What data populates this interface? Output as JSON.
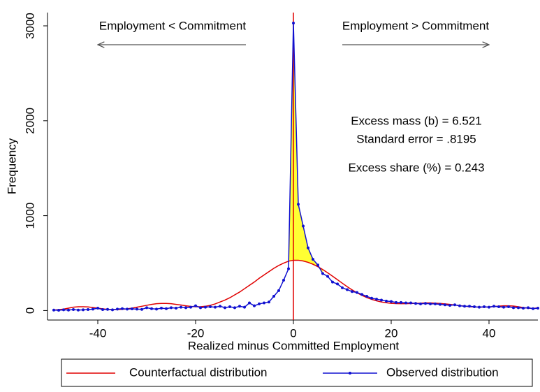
{
  "chart_data": {
    "type": "line",
    "xlabel": "Realized minus Committed Employment",
    "ylabel": "Frequency",
    "xlim": [
      -50,
      50
    ],
    "ylim": [
      -100,
      3140
    ],
    "xticks": [
      -40,
      -20,
      0,
      20,
      40
    ],
    "yticks": [
      0,
      1000,
      2000,
      3000
    ],
    "vline": 0,
    "vline_color": "#e00000",
    "fill_color": "#ffff33",
    "legend": "bottom",
    "annotations": [
      "Employment < Commitment",
      "Employment > Commitment",
      "Excess mass (b) = 6.521",
      "Standard error = .8195",
      "Excess share (%) = 0.243"
    ],
    "x": [
      -49,
      -48,
      -47,
      -46,
      -45,
      -44,
      -43,
      -42,
      -41,
      -40,
      -39,
      -38,
      -37,
      -36,
      -35,
      -34,
      -33,
      -32,
      -31,
      -30,
      -29,
      -28,
      -27,
      -26,
      -25,
      -24,
      -23,
      -22,
      -21,
      -20,
      -19,
      -18,
      -17,
      -16,
      -15,
      -14,
      -13,
      -12,
      -11,
      -10,
      -9,
      -8,
      -7,
      -6,
      -5,
      -4,
      -3,
      -2,
      -1,
      0,
      1,
      2,
      3,
      4,
      5,
      6,
      7,
      8,
      9,
      10,
      11,
      12,
      13,
      14,
      15,
      16,
      17,
      18,
      19,
      20,
      21,
      22,
      23,
      24,
      25,
      26,
      27,
      28,
      29,
      30,
      31,
      32,
      33,
      34,
      35,
      36,
      37,
      38,
      39,
      40,
      41,
      42,
      43,
      44,
      45,
      46,
      47,
      48,
      49,
      50
    ],
    "series": [
      {
        "name": "Counterfactual distribution",
        "color": "#e00000",
        "markers": false,
        "values": [
          5,
          10,
          15,
          25,
          35,
          40,
          40,
          38,
          32,
          25,
          18,
          12,
          10,
          10,
          12,
          18,
          25,
          35,
          45,
          55,
          65,
          72,
          75,
          75,
          72,
          65,
          58,
          50,
          44,
          40,
          40,
          45,
          55,
          70,
          90,
          110,
          135,
          165,
          195,
          230,
          265,
          300,
          340,
          375,
          410,
          445,
          475,
          500,
          520,
          530,
          530,
          522,
          508,
          488,
          462,
          432,
          398,
          362,
          325,
          288,
          252,
          218,
          187,
          160,
          137,
          118,
          102,
          90,
          82,
          76,
          73,
          72,
          72,
          74,
          76,
          78,
          80,
          80,
          78,
          75,
          70,
          65,
          58,
          52,
          46,
          41,
          38,
          36,
          36,
          38,
          42,
          46,
          50,
          50,
          47,
          40,
          32,
          25,
          22,
          28
        ]
      },
      {
        "name": "Observed distribution",
        "color": "#1010d0",
        "markers": true,
        "values": [
          5,
          3,
          8,
          5,
          10,
          5,
          8,
          10,
          15,
          25,
          10,
          12,
          8,
          15,
          20,
          15,
          18,
          15,
          12,
          30,
          20,
          15,
          25,
          20,
          30,
          25,
          35,
          30,
          35,
          50,
          30,
          35,
          40,
          35,
          45,
          30,
          40,
          30,
          45,
          35,
          80,
          50,
          70,
          80,
          90,
          150,
          210,
          320,
          440,
          3030,
          1120,
          890,
          660,
          540,
          480,
          390,
          360,
          300,
          280,
          240,
          220,
          200,
          190,
          170,
          150,
          130,
          120,
          110,
          100,
          95,
          85,
          85,
          80,
          80,
          75,
          70,
          75,
          70,
          70,
          65,
          60,
          55,
          60,
          50,
          45,
          45,
          40,
          35,
          40,
          35,
          45,
          40,
          35,
          40,
          30,
          30,
          25,
          30,
          20,
          25
        ]
      }
    ]
  }
}
